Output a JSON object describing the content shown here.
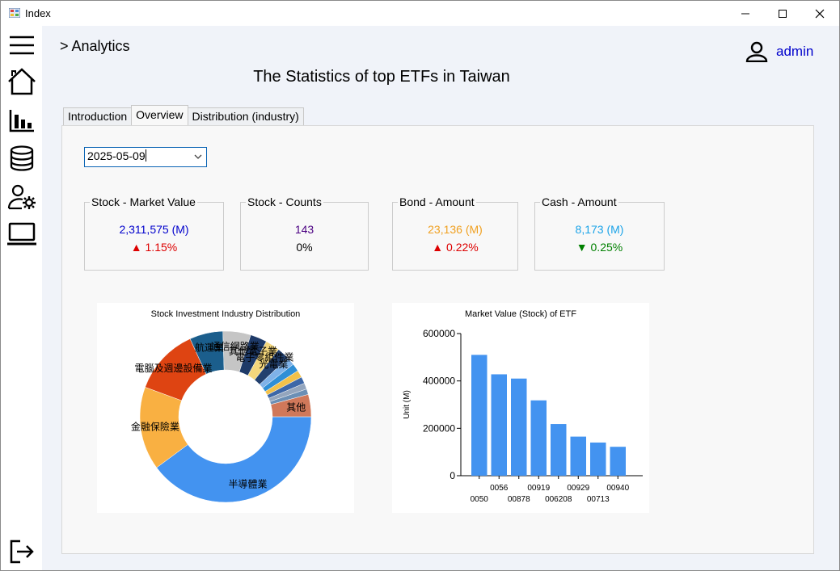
{
  "window": {
    "title": "Index",
    "controls": [
      "minimize",
      "maximize",
      "close"
    ]
  },
  "sidebar": {
    "items": [
      {
        "name": "menu-icon"
      },
      {
        "name": "home-icon"
      },
      {
        "name": "bar-chart-icon"
      },
      {
        "name": "database-icon"
      },
      {
        "name": "user-settings-icon"
      },
      {
        "name": "laptop-icon"
      }
    ],
    "bottom": {
      "name": "logout-icon"
    }
  },
  "header": {
    "breadcrumb": "> Analytics",
    "username": "admin",
    "page_title": "The Statistics of top ETFs in Taiwan"
  },
  "tabs": [
    {
      "label": "Introduction",
      "active": false
    },
    {
      "label": "Overview",
      "active": true
    },
    {
      "label": "Distribution (industry)",
      "active": false
    }
  ],
  "date_select": {
    "value": "2025-05-09"
  },
  "stats": [
    {
      "title": "Stock - Market Value",
      "value": "2,311,575 (M)",
      "change": "▲ 1.15%",
      "value_color": "#0000cc",
      "change_color": "#dd0000"
    },
    {
      "title": "Stock - Counts",
      "value": "143",
      "change": "0%",
      "value_color": "#4b0082",
      "change_color": "#000000"
    },
    {
      "title": "Bond - Amount",
      "value": "23,136 (M)",
      "change": "▲ 0.22%",
      "value_color": "#f0a020",
      "change_color": "#dd0000"
    },
    {
      "title": "Cash - Amount",
      "value": "8,173 (M)",
      "change": "▼ 0.25%",
      "value_color": "#1aa3e8",
      "change_color": "#008000"
    }
  ],
  "chart_data": [
    {
      "type": "pie",
      "donut": true,
      "title": "Stock Investment Industry Distribution",
      "slices": [
        {
          "label": "半導體業",
          "value": 38.0,
          "color": "#4393f0"
        },
        {
          "label": "金融保險業",
          "value": 15.0,
          "color": "#f9b042"
        },
        {
          "label": "電腦及週邊設備業",
          "value": 12.0,
          "color": "#de4412"
        },
        {
          "label": "航運業",
          "value": 6.0,
          "color": "#1b5e8c"
        },
        {
          "label": "通信網路業",
          "value": 5.0,
          "color": "#c5c5c5"
        },
        {
          "label": "其他電子業",
          "value": 3.0,
          "color": "#1e3a68"
        },
        {
          "label": "電子零組件業",
          "value": 2.6,
          "color": "#f4d77c"
        },
        {
          "label": "光電業",
          "value": 2.2,
          "color": "#22406e"
        },
        {
          "label": "",
          "value": 1.5,
          "color": "#7fb2e8"
        },
        {
          "label": "",
          "value": 1.4,
          "color": "#2f8fd6"
        },
        {
          "label": "",
          "value": 1.3,
          "color": "#f2c14a"
        },
        {
          "label": "",
          "value": 1.2,
          "color": "#3d67a8"
        },
        {
          "label": "",
          "value": 1.1,
          "color": "#93a5bd"
        },
        {
          "label": "",
          "value": 1.0,
          "color": "#6b8fb5"
        },
        {
          "label": "其他",
          "value": 4.0,
          "color": "#d0785a"
        }
      ]
    },
    {
      "type": "bar",
      "title": "Market Value (Stock) of ETF",
      "ylabel": "Unit (M)",
      "xlabel": "",
      "categories": [
        "0050",
        "0056",
        "00878",
        "00919",
        "006208",
        "00929",
        "00713",
        "00940"
      ],
      "values": [
        510000,
        428000,
        410000,
        318000,
        218000,
        165000,
        140000,
        122000
      ],
      "ylim": [
        0,
        600000
      ],
      "yticks": [
        "0",
        "200000",
        "400000",
        "600000"
      ],
      "bar_color": "#4393f0"
    }
  ]
}
